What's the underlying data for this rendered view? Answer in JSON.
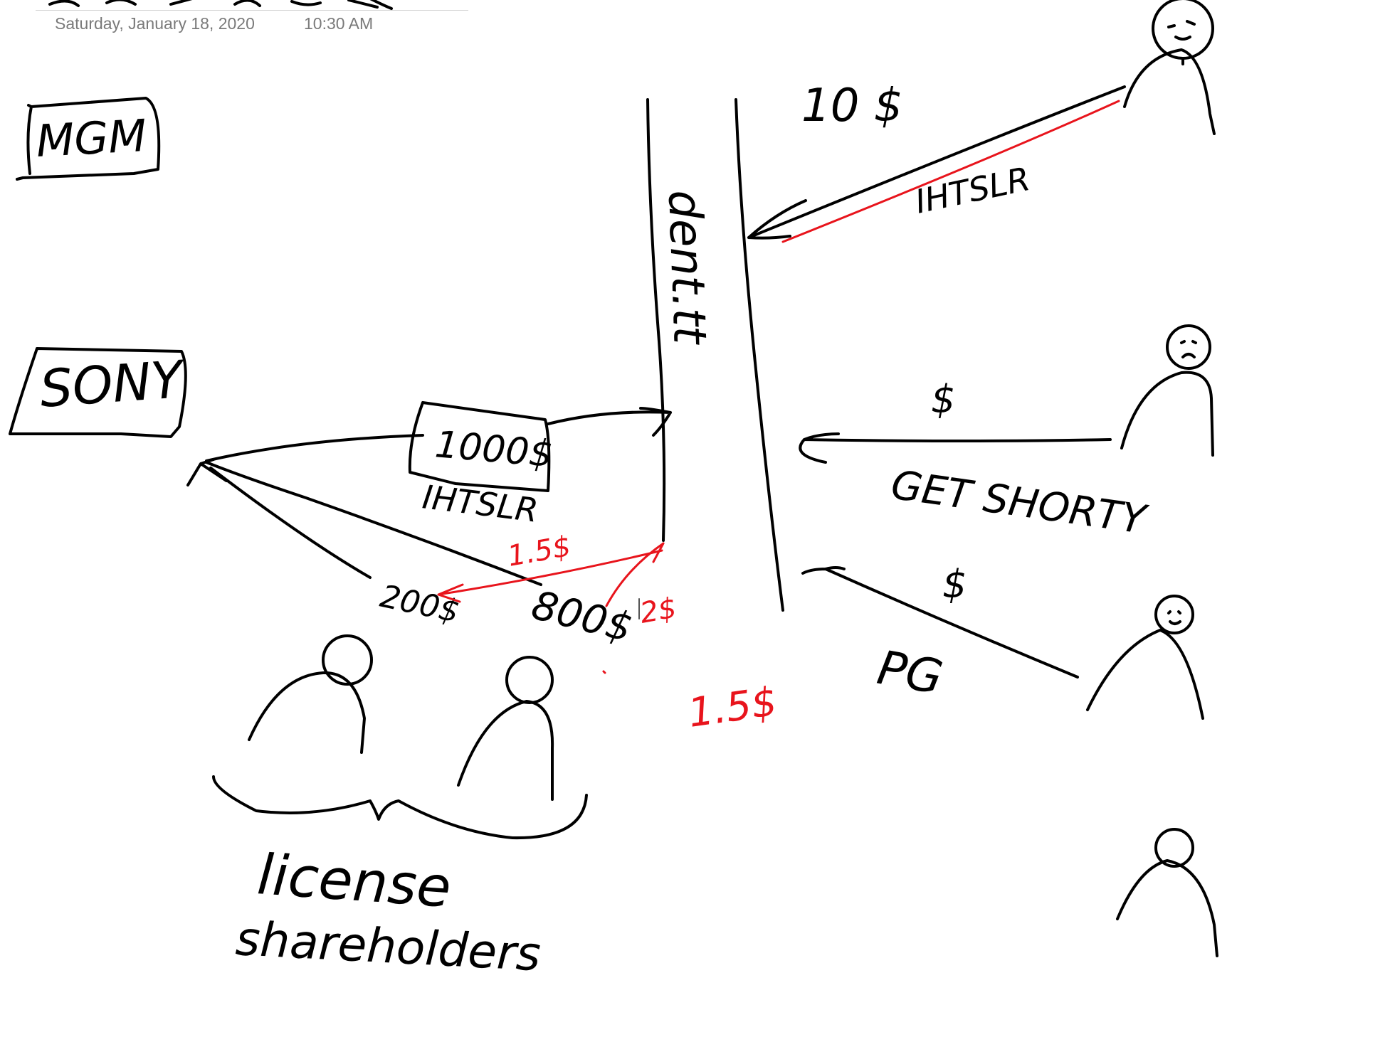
{
  "header": {
    "date": "Saturday, January 18, 2020",
    "time": "10:30 AM"
  },
  "colors": {
    "ink": "#000000",
    "ink_red": "#e8141c",
    "header_text": "#7a7a7a"
  },
  "notes": {
    "mgm": "MGM",
    "sony": "SONY",
    "pipe_label": "dent.tt",
    "top_amount": "10 $",
    "top_label": "IHTSLR",
    "mid_amount": "$",
    "get_shorty": "GET SHORTY",
    "pg_amount": "$",
    "pg": "PG",
    "box_amount": "1000$",
    "box_label": "IHTSLR",
    "amount_200": "200$",
    "amount_800": "800$",
    "red_15_a": "1.5$",
    "red_2": "2$",
    "red_15_b": "1.5$",
    "license": "license",
    "shareholders": "shareholders"
  }
}
